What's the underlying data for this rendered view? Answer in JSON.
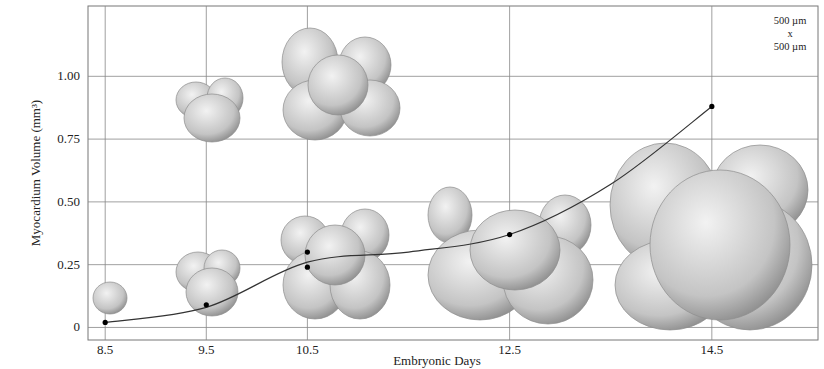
{
  "chart_data": {
    "type": "scatter",
    "x_label": "Embryonic Days",
    "y_label": "Myocardium Volume (mm³)",
    "annotations": [
      "500 µm",
      "x",
      "500 µm"
    ],
    "xlim": [
      8.33,
      15.55
    ],
    "xticks": [
      8.5,
      9.5,
      10.5,
      12.5,
      14.5
    ],
    "ylim": [
      -0.05,
      1.28
    ],
    "yticks": [
      0,
      0.25,
      {
        "value": 0.5,
        "label": "0.50"
      },
      0.75,
      {
        "value": 1.0,
        "label": "1.00"
      }
    ],
    "grid": true,
    "series": [
      {
        "type": "scatter",
        "marker": "circle",
        "color": "#000000",
        "x": [
          8.5,
          9.5,
          10.5,
          10.5,
          12.5,
          14.5
        ],
        "values": [
          0.02,
          0.09,
          0.3,
          0.24,
          0.37,
          0.88
        ]
      },
      {
        "type": "line",
        "line_style": "solid",
        "color": "#333333",
        "x": [
          8.5,
          9.5,
          10.5,
          11.5,
          12.5,
          13.5,
          14.5
        ],
        "values": [
          0.02,
          0.08,
          0.26,
          0.3,
          0.37,
          0.57,
          0.88
        ]
      }
    ]
  }
}
